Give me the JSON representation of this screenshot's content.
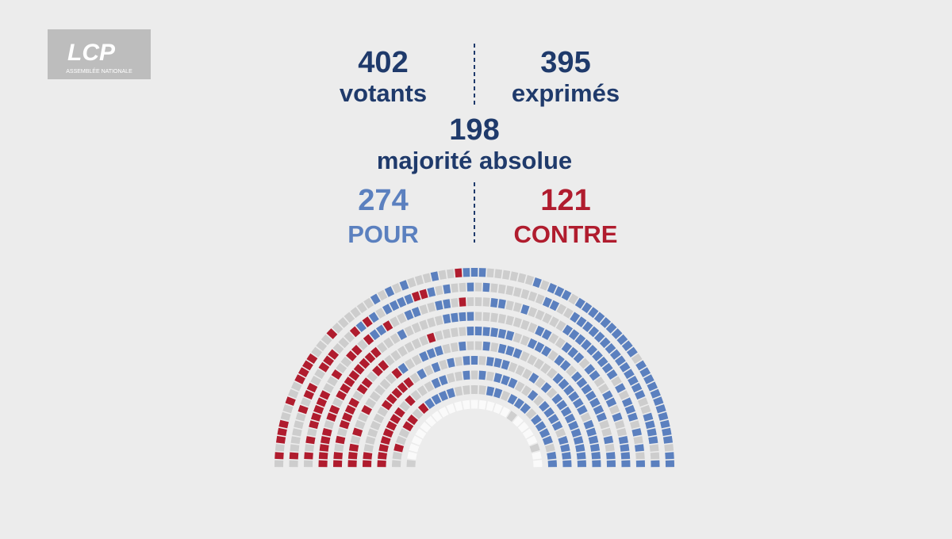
{
  "logo": {
    "name": "LCP",
    "subtitle": "ASSEMBLÉE NATIONALE"
  },
  "votants": {
    "value": "402",
    "label": "votants"
  },
  "exprimes": {
    "value": "395",
    "label": "exprimés"
  },
  "majorite": {
    "value": "198",
    "label": "majorité absolue"
  },
  "pour": {
    "value": "274",
    "label": "POUR"
  },
  "contre": {
    "value": "121",
    "label": "CONTRE"
  }
}
